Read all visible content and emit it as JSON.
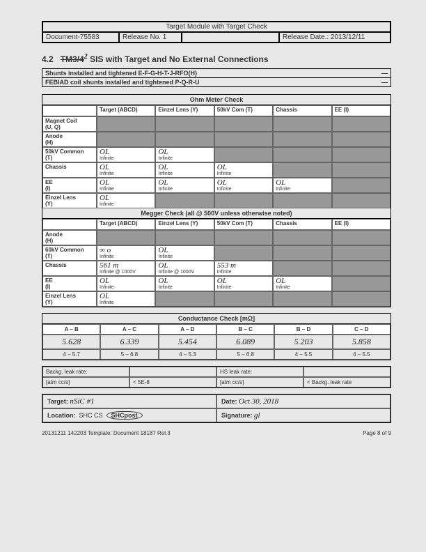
{
  "header": {
    "title": "Target Module with Target Check",
    "doc": "Document-75583",
    "release": "Release No. 1",
    "reldate": "Release Date.: 2013/12/11"
  },
  "section": {
    "num": "4.2",
    "tm_strike": "TM3/4",
    "tm_correct": "2",
    "rest": "SIS with Target and No External Connections"
  },
  "shunts": {
    "line1": "Shunts installed and tightened E-F-G-H-T-J-RFO(H)",
    "line2": "FEBIAD coil shunts installed and tightened P-Q-R-U",
    "dash": "—"
  },
  "ohm": {
    "title": "Ohm Meter Check",
    "cols": [
      "Target (ABCD)",
      "Einzel Lens (Y)",
      "50kV Com (T)",
      "Chassis",
      "EE (I)"
    ],
    "rows": [
      {
        "lbl": "Magnet Coil\n(U, Q)",
        "cells": [
          "gray",
          "gray",
          "gray",
          "gray",
          "gray"
        ]
      },
      {
        "lbl": "Anode\n(H)",
        "cells": [
          "gray",
          "gray",
          "gray",
          "gray",
          "gray"
        ]
      },
      {
        "lbl": "50kV Common\n(T)",
        "cells": [
          {
            "hw": "OL",
            "sub": "Infinite"
          },
          {
            "hw": "OL",
            "sub": "Infinite"
          },
          "gray",
          "gray",
          "gray"
        ]
      },
      {
        "lbl": "Chassis",
        "cells": [
          {
            "hw": "OL",
            "sub": "Infinite"
          },
          {
            "hw": "OL",
            "sub": "Infinite"
          },
          {
            "hw": "OL",
            "sub": "Infinite"
          },
          "gray",
          "gray"
        ]
      },
      {
        "lbl": "EE\n(I)",
        "cells": [
          {
            "hw": "OL",
            "sub": "Infinite"
          },
          {
            "hw": "OL",
            "sub": "Infinite"
          },
          {
            "hw": "OL",
            "sub": "Infinite"
          },
          {
            "hw": "OL",
            "sub": "Infinite"
          },
          "gray"
        ]
      },
      {
        "lbl": "Einzel Lens\n(Y)",
        "cells": [
          {
            "hw": "OL",
            "sub": "Infinite"
          },
          "gray",
          "gray",
          "gray",
          "gray"
        ]
      }
    ]
  },
  "megger": {
    "title": "Megger Check (all @ 500V unless otherwise noted)",
    "cols": [
      "Target (ABCD)",
      "Einzel Lens (Y)",
      "50kV Com (T)",
      "Chassis",
      "EE (I)"
    ],
    "rows": [
      {
        "lbl": "Anode\n(H)",
        "cells": [
          "gray",
          "gray",
          "gray",
          "gray",
          "gray"
        ]
      },
      {
        "lbl": "60kV Common\n(T)",
        "cells": [
          {
            "hw": "∞ o",
            "sub": "Infinite"
          },
          {
            "hw": "OL",
            "sub": "Infinite"
          },
          "gray",
          "gray",
          "gray"
        ]
      },
      {
        "lbl": "Chassis",
        "cells": [
          {
            "hw": "561 m",
            "sub": "Infinite @ 1000V"
          },
          {
            "hw": "OL",
            "sub": "Infinite @ 1000V"
          },
          {
            "hw": "553 m",
            "sub": "Infinite"
          },
          "gray",
          "gray"
        ]
      },
      {
        "lbl": "EE\n(I)",
        "cells": [
          {
            "hw": "OL",
            "sub": "Infinite"
          },
          {
            "hw": "OL",
            "sub": "Infinite"
          },
          {
            "hw": "OL",
            "sub": "Infinite"
          },
          {
            "hw": "OL",
            "sub": "Infinite"
          },
          "gray"
        ]
      },
      {
        "lbl": "Einzel Lens\n(Y)",
        "cells": [
          {
            "hw": "OL",
            "sub": "Infinite"
          },
          "gray",
          "gray",
          "gray",
          "gray"
        ]
      }
    ]
  },
  "cond": {
    "title": "Conductance Check [mΩ]",
    "cols": [
      "A – B",
      "A – C",
      "A – D",
      "B – C",
      "B – D",
      "C – D"
    ],
    "vals": [
      "5.628",
      "6.339",
      "5.454",
      "6.089",
      "5.203",
      "5.858"
    ],
    "ranges": [
      "4 – 5.7",
      "5 – 6.8",
      "4 – 5.3",
      "5 – 6.8",
      "4 – 5.5",
      "4 – 5.5"
    ]
  },
  "leak": {
    "l1": "Backg. leak rate:",
    "l2": "",
    "l3": "HS leak rate:",
    "l4": "",
    "r1": "[atm cc/s]",
    "r2": "< 5E-8",
    "r3": "[atm cc/s]",
    "r4": "< Backg. leak rate"
  },
  "sign": {
    "target_lbl": "Target:",
    "target_hw": "nSiC #1",
    "date_lbl": "Date:",
    "date_hw": "Oct 30, 2018",
    "loc_lbl": "Location:",
    "loc_opts": "SHC   CS",
    "loc_circled": "SHCpost",
    "sig_lbl": "Signature:",
    "sig_hw": "gl"
  },
  "footer": {
    "left": "20131211 142203 Template: Document 18187 Rel.3",
    "right": "Page 8 of 9"
  }
}
